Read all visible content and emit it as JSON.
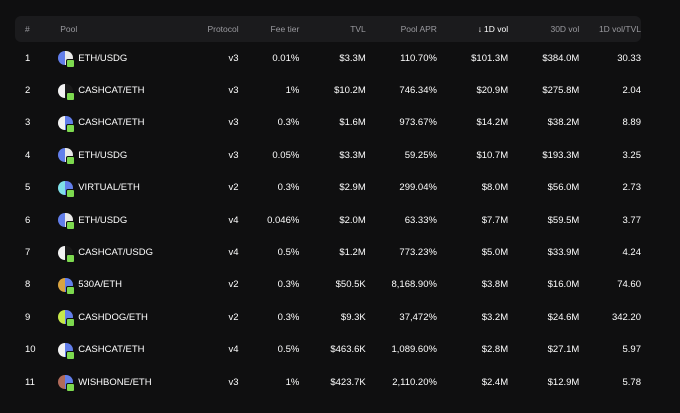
{
  "headers": {
    "num": "#",
    "pool": "Pool",
    "protocol": "Protocol",
    "fee_tier": "Fee tier",
    "tvl": "TVL",
    "pool_apr": "Pool APR",
    "vol_1d": "1D vol",
    "vol_1d_arrow": "↓",
    "vol_30d": "30D vol",
    "ratio": "1D vol/TVL"
  },
  "colors": {
    "eth": "#627eea",
    "usdg": "#e8e8e8",
    "cashcat": "#f2f2f2",
    "cashcat_dark": "#1a1a1a",
    "virtual": "#7fe0e8",
    "token_530a": "#d9a441",
    "cashdog": "#c6e84a",
    "wishbone": "#b06a5a",
    "badge": "#7dd94f"
  },
  "rows": [
    {
      "num": "1",
      "pool": "ETH/USDG",
      "protocol": "v3",
      "fee": "0.01%",
      "tvl": "$3.3M",
      "apr": "110.70%",
      "vol1d": "$101.3M",
      "vol30d": "$384.0M",
      "ratio": "30.33",
      "ca": "#627eea",
      "cb": "#e8e8e8"
    },
    {
      "num": "2",
      "pool": "CASHCAT/ETH",
      "protocol": "v3",
      "fee": "1%",
      "tvl": "$10.2M",
      "apr": "746.34%",
      "vol1d": "$20.9M",
      "vol30d": "$275.8M",
      "ratio": "2.04",
      "ca": "#f2f2f2",
      "cb": "#1a1a1a"
    },
    {
      "num": "3",
      "pool": "CASHCAT/ETH",
      "protocol": "v3",
      "fee": "0.3%",
      "tvl": "$1.6M",
      "apr": "973.67%",
      "vol1d": "$14.2M",
      "vol30d": "$38.2M",
      "ratio": "8.89",
      "ca": "#f2f2f2",
      "cb": "#627eea"
    },
    {
      "num": "4",
      "pool": "ETH/USDG",
      "protocol": "v3",
      "fee": "0.05%",
      "tvl": "$3.3M",
      "apr": "59.25%",
      "vol1d": "$10.7M",
      "vol30d": "$193.3M",
      "ratio": "3.25",
      "ca": "#627eea",
      "cb": "#e8e8e8"
    },
    {
      "num": "5",
      "pool": "VIRTUAL/ETH",
      "protocol": "v2",
      "fee": "0.3%",
      "tvl": "$2.9M",
      "apr": "299.04%",
      "vol1d": "$8.0M",
      "vol30d": "$56.0M",
      "ratio": "2.73",
      "ca": "#7fe0e8",
      "cb": "#627eea"
    },
    {
      "num": "6",
      "pool": "ETH/USDG",
      "protocol": "v4",
      "fee": "0.046%",
      "tvl": "$2.0M",
      "apr": "63.33%",
      "vol1d": "$7.7M",
      "vol30d": "$59.5M",
      "ratio": "3.77",
      "ca": "#627eea",
      "cb": "#e8e8e8"
    },
    {
      "num": "7",
      "pool": "CASHCAT/USDG",
      "protocol": "v4",
      "fee": "0.5%",
      "tvl": "$1.2M",
      "apr": "773.23%",
      "vol1d": "$5.0M",
      "vol30d": "$33.9M",
      "ratio": "4.24",
      "ca": "#f2f2f2",
      "cb": "#1a1a1a"
    },
    {
      "num": "8",
      "pool": "530A/ETH",
      "protocol": "v2",
      "fee": "0.3%",
      "tvl": "$50.5K",
      "apr": "8,168.90%",
      "vol1d": "$3.8M",
      "vol30d": "$16.0M",
      "ratio": "74.60",
      "ca": "#d9a441",
      "cb": "#627eea"
    },
    {
      "num": "9",
      "pool": "CASHDOG/ETH",
      "protocol": "v2",
      "fee": "0.3%",
      "tvl": "$9.3K",
      "apr": "37,472%",
      "vol1d": "$3.2M",
      "vol30d": "$24.6M",
      "ratio": "342.20",
      "ca": "#c6e84a",
      "cb": "#627eea"
    },
    {
      "num": "10",
      "pool": "CASHCAT/ETH",
      "protocol": "v4",
      "fee": "0.5%",
      "tvl": "$463.6K",
      "apr": "1,089.60%",
      "vol1d": "$2.8M",
      "vol30d": "$27.1M",
      "ratio": "5.97",
      "ca": "#f2f2f2",
      "cb": "#627eea"
    },
    {
      "num": "11",
      "pool": "WISHBONE/ETH",
      "protocol": "v3",
      "fee": "1%",
      "tvl": "$423.7K",
      "apr": "2,110.20%",
      "vol1d": "$2.4M",
      "vol30d": "$12.9M",
      "ratio": "5.78",
      "ca": "#b06a5a",
      "cb": "#627eea"
    }
  ]
}
